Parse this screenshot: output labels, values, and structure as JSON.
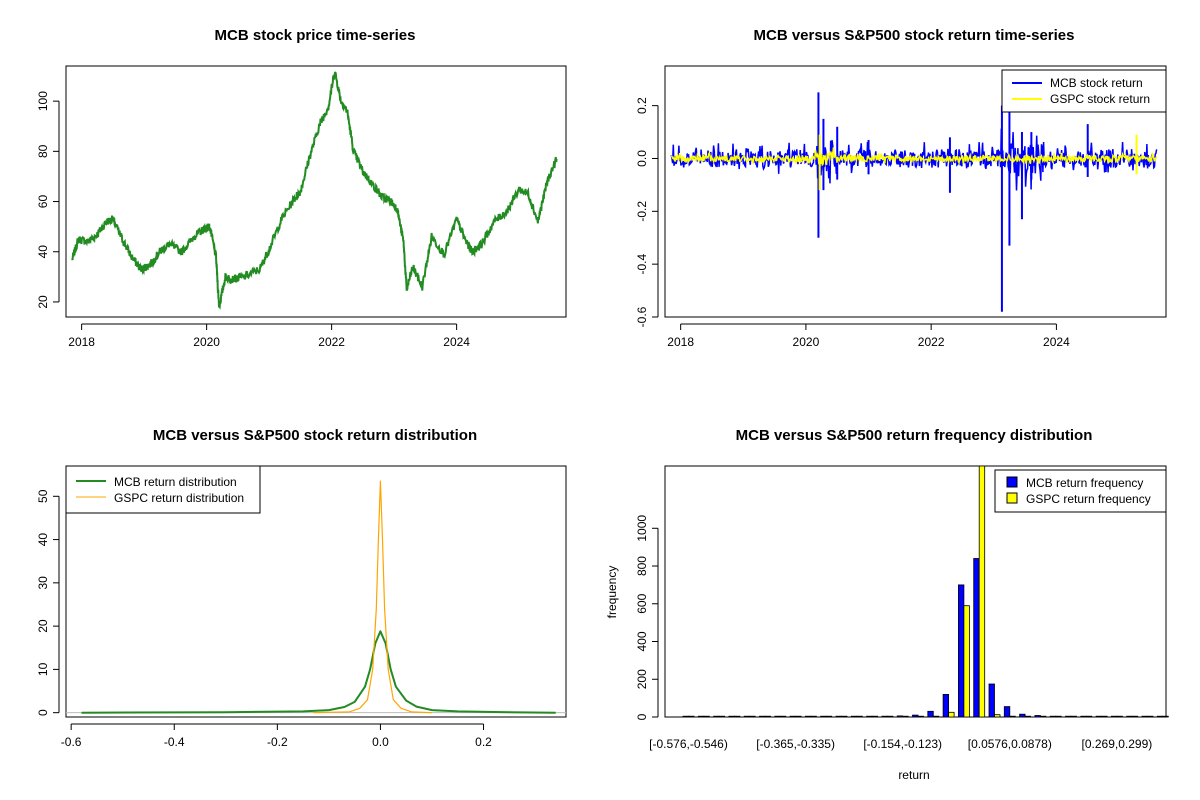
{
  "colors": {
    "mcb_price": "#228b22",
    "mcb_return": "#0000ff",
    "gspc_return": "#ffff00",
    "mcb_density": "#228b22",
    "gspc_density": "#ffa500",
    "mcb_bar": "#0000ff",
    "gspc_bar": "#ffff00"
  },
  "chart_data": [
    {
      "id": "price",
      "type": "line",
      "title": "MCB stock price time-series",
      "xlabel": "",
      "ylabel": "",
      "xlim": [
        2017.75,
        2025.75
      ],
      "ylim": [
        14,
        114
      ],
      "xticks": [
        2018,
        2020,
        2022,
        2024
      ],
      "xtick_labels": [
        "2018",
        "2020",
        "2022",
        "2024"
      ],
      "yticks": [
        20,
        40,
        60,
        80,
        100
      ],
      "ytick_labels": [
        "20",
        "40",
        "60",
        "80",
        "100"
      ],
      "series": [
        {
          "name": "MCB stock price",
          "x": [
            2017.85,
            2017.95,
            2018.1,
            2018.25,
            2018.4,
            2018.5,
            2018.65,
            2018.8,
            2018.95,
            2019.1,
            2019.25,
            2019.4,
            2019.6,
            2019.8,
            2019.95,
            2020.05,
            2020.15,
            2020.2,
            2020.3,
            2020.4,
            2020.6,
            2020.85,
            2021.0,
            2021.2,
            2021.4,
            2021.5,
            2021.65,
            2021.8,
            2021.95,
            2022.05,
            2022.15,
            2022.25,
            2022.35,
            2022.5,
            2022.65,
            2022.8,
            2022.95,
            2023.05,
            2023.15,
            2023.2,
            2023.3,
            2023.45,
            2023.6,
            2023.8,
            2024.0,
            2024.15,
            2024.25,
            2024.4,
            2024.6,
            2024.8,
            2025.0,
            2025.15,
            2025.3,
            2025.45,
            2025.6
          ],
          "values": [
            37,
            45,
            44,
            47,
            52,
            53,
            45,
            38,
            33,
            35,
            40,
            43,
            40,
            46,
            49,
            50,
            38,
            18,
            30,
            29,
            30,
            33,
            41,
            53,
            61,
            64,
            78,
            90,
            98,
            112,
            100,
            96,
            80,
            72,
            67,
            62,
            60,
            57,
            44,
            25,
            34,
            26,
            46,
            39,
            53,
            44,
            40,
            43,
            52,
            56,
            65,
            63,
            52,
            68,
            77
          ]
        }
      ]
    },
    {
      "id": "returns",
      "type": "line",
      "title": "MCB versus S&P500 stock return time-series",
      "xlabel": "",
      "ylabel": "",
      "xlim": [
        2017.75,
        2025.75
      ],
      "ylim": [
        -0.6,
        0.35
      ],
      "xticks": [
        2018,
        2020,
        2022,
        2024
      ],
      "xtick_labels": [
        "2018",
        "2020",
        "2022",
        "2024"
      ],
      "yticks": [
        -0.6,
        -0.4,
        -0.2,
        0.0,
        0.2
      ],
      "ytick_labels": [
        "-0.6",
        "-0.4",
        "-0.2",
        "0.0",
        "0.2"
      ],
      "legend_position": "top-right",
      "series": [
        {
          "name": "MCB stock return",
          "spikes": [
            {
              "x": 2020.2,
              "values": [
                0.25,
                -0.3
              ]
            },
            {
              "x": 2020.28,
              "values": [
                0.15,
                -0.12
              ]
            },
            {
              "x": 2020.5,
              "values": [
                0.12,
                -0.08
              ]
            },
            {
              "x": 2021.0,
              "values": [
                0.07,
                -0.06
              ]
            },
            {
              "x": 2022.3,
              "values": [
                0.08,
                -0.13
              ]
            },
            {
              "x": 2023.13,
              "values": [
                0.2,
                -0.58
              ]
            },
            {
              "x": 2023.25,
              "values": [
                0.18,
                -0.33
              ]
            },
            {
              "x": 2023.45,
              "values": [
                0.1,
                -0.23
              ]
            },
            {
              "x": 2023.6,
              "values": [
                0.1,
                -0.08
              ]
            },
            {
              "x": 2024.5,
              "values": [
                0.13,
                -0.07
              ]
            }
          ]
        },
        {
          "name": "GSPC stock return",
          "spikes": [
            {
              "x": 2020.22,
              "values": [
                0.09,
                -0.12
              ]
            },
            {
              "x": 2025.28,
              "values": [
                0.09,
                -0.06
              ]
            }
          ]
        }
      ]
    },
    {
      "id": "density",
      "type": "line",
      "title": "MCB versus S&P500 stock return distribution",
      "xlabel": "",
      "ylabel": "",
      "xlim": [
        -0.61,
        0.36
      ],
      "ylim": [
        -1,
        57
      ],
      "xticks": [
        -0.6,
        -0.4,
        -0.2,
        0.0,
        0.2
      ],
      "xtick_labels": [
        "-0.6",
        "-0.4",
        "-0.2",
        "0.0",
        "0.2"
      ],
      "yticks": [
        0,
        10,
        20,
        30,
        40,
        50
      ],
      "ytick_labels": [
        "0",
        "10",
        "20",
        "30",
        "40",
        "50"
      ],
      "legend_position": "top-left",
      "series": [
        {
          "name": "MCB return distribution",
          "x": [
            -0.58,
            -0.3,
            -0.15,
            -0.1,
            -0.07,
            -0.05,
            -0.03,
            -0.02,
            -0.01,
            0.0,
            0.01,
            0.02,
            0.03,
            0.05,
            0.07,
            0.1,
            0.15,
            0.25,
            0.34
          ],
          "values": [
            0,
            0.1,
            0.3,
            0.6,
            1.3,
            2.5,
            6,
            10,
            16,
            18.8,
            16,
            10,
            6,
            2.8,
            1.4,
            0.6,
            0.3,
            0.1,
            0
          ]
        },
        {
          "name": "GSPC return distribution",
          "x": [
            -0.13,
            -0.06,
            -0.04,
            -0.025,
            -0.015,
            -0.008,
            -0.004,
            0.0,
            0.004,
            0.008,
            0.015,
            0.025,
            0.04,
            0.06,
            0.1
          ],
          "values": [
            0,
            0.2,
            1,
            3,
            10,
            24,
            40,
            53.5,
            40,
            24,
            10,
            3,
            1,
            0.2,
            0
          ]
        }
      ]
    },
    {
      "id": "freq",
      "type": "bar",
      "title": "MCB versus S&P500 return frequency distribution",
      "xlabel": "return",
      "ylabel": "frequency",
      "ylim": [
        0,
        1330
      ],
      "yticks": [
        0,
        200,
        400,
        600,
        800,
        1000
      ],
      "ytick_labels": [
        "0",
        "200",
        "400",
        "600",
        "800",
        "1000"
      ],
      "tick_label_categories": [
        "[-0.576,-0.546)",
        "[-0.365,-0.335)",
        "[-0.154,-0.123)",
        "[0.0576,0.0878)",
        "[0.269,0.299)"
      ],
      "tick_label_indices": [
        0,
        7,
        14,
        21,
        28
      ],
      "legend_position": "top-right",
      "series": [
        {
          "name": "MCB return frequency",
          "values": [
            1,
            1,
            0,
            0,
            1,
            0,
            0,
            0,
            1,
            2,
            1,
            2,
            3,
            4,
            6,
            10,
            30,
            120,
            700,
            840,
            175,
            55,
            15,
            8,
            4,
            2,
            1,
            0,
            1,
            1,
            0,
            0
          ]
        },
        {
          "name": "GSPC return frequency",
          "values": [
            0,
            0,
            0,
            0,
            0,
            0,
            0,
            0,
            0,
            0,
            0,
            0,
            0,
            0,
            0,
            0,
            1,
            25,
            590,
            1330,
            12,
            2,
            0,
            0,
            0,
            0,
            0,
            0,
            0,
            0,
            0,
            0
          ]
        }
      ]
    }
  ]
}
